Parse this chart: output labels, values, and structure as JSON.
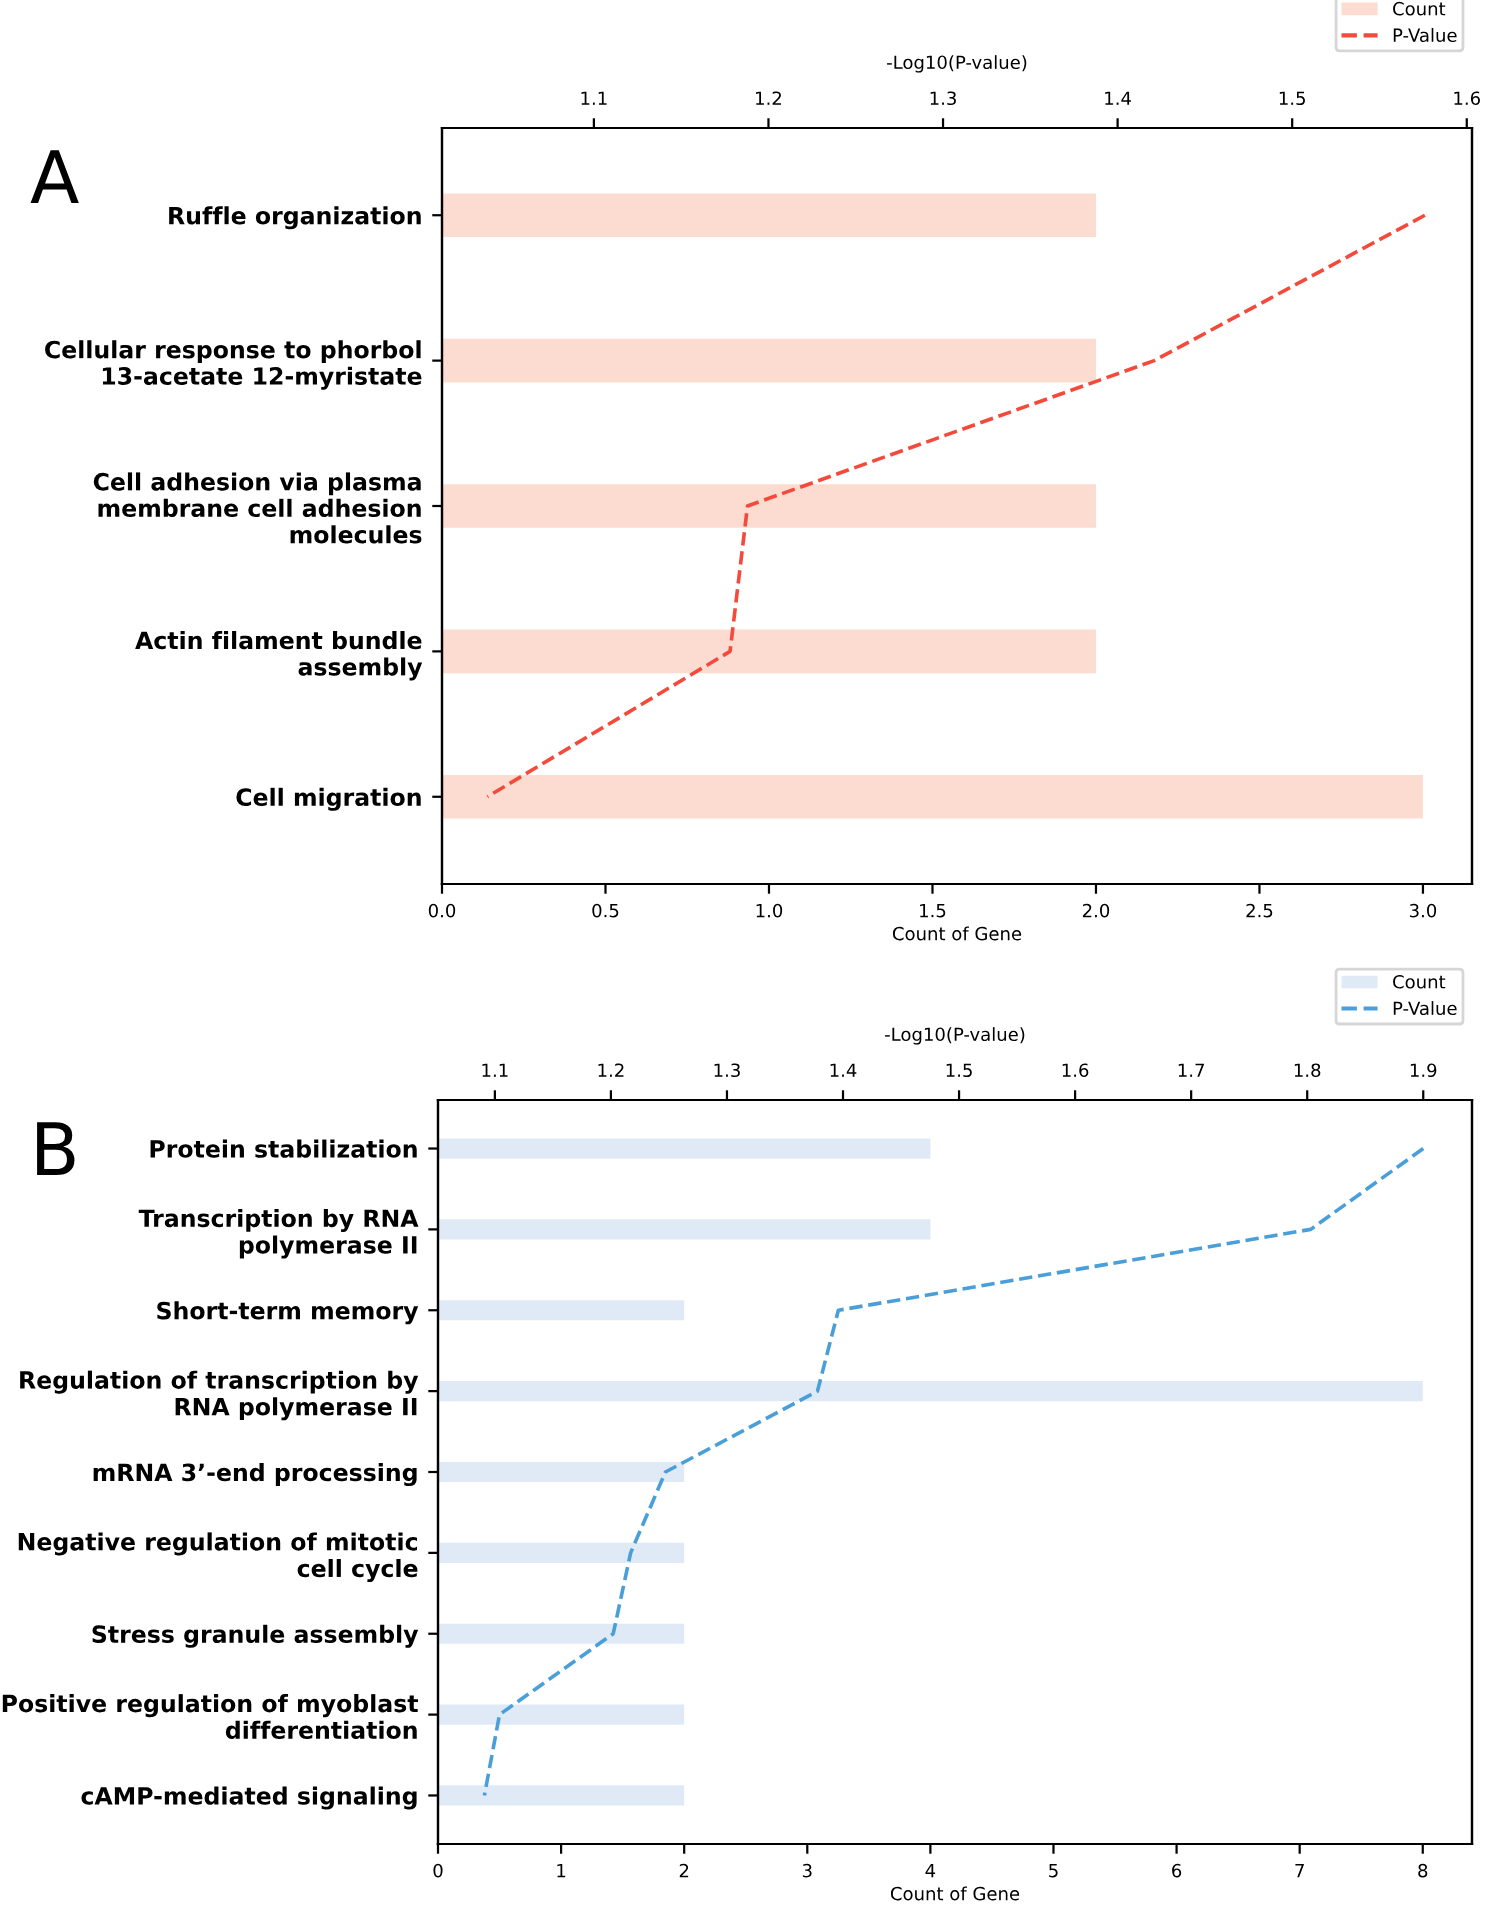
{
  "chart_data": [
    {
      "type": "bar",
      "orientation": "horizontal",
      "annotations": [
        "A"
      ],
      "xlabel": "Count of Gene",
      "x2label": "-Log10(P-value)",
      "categories": [
        "Ruffle organization",
        "Cellular response to phorbol\n13-acetate 12-myristate",
        "Cell adhesion via plasma\nmembrane cell adhesion\nmolecules",
        "Actin filament bundle\nassembly",
        "Cell migration"
      ],
      "series": [
        {
          "name": "Count",
          "color": "#fcdcd0",
          "values": [
            2,
            2,
            2,
            2,
            3
          ]
        },
        {
          "name": "P-Value",
          "type": "line",
          "axis": "x2",
          "color": "#f44a3b",
          "line_style": "dashed",
          "values": [
            1.576,
            1.421,
            1.188,
            1.178,
            1.039
          ]
        }
      ],
      "xlim": [
        0,
        3.15
      ],
      "xticks": [
        {
          "value": 0,
          "label": "0.0"
        },
        0.5,
        {
          "value": 1,
          "label": "1.0"
        },
        1.5,
        {
          "value": 2,
          "label": "2.0"
        },
        2.5,
        {
          "value": 3,
          "label": "3.0"
        }
      ],
      "x2lim": [
        1.013,
        1.603
      ],
      "x2ticks": [
        1.1,
        1.2,
        1.3,
        1.4,
        1.5,
        1.6
      ],
      "legend": "top right",
      "grid": false
    },
    {
      "type": "bar",
      "orientation": "horizontal",
      "annotations": [
        "B"
      ],
      "xlabel": "Count of Gene",
      "x2label": "-Log10(P-value)",
      "categories": [
        "Protein stabilization",
        "Transcription by RNA\npolymerase II",
        "Short-term memory",
        "Regulation of transcription by\nRNA polymerase II",
        "mRNA 3’-end processing",
        "Negative regulation of mitotic\ncell cycle",
        "Stress granule assembly",
        "Positive regulation of myoblast\ndifferentiation",
        "cAMP-mediated signaling"
      ],
      "series": [
        {
          "name": "Count",
          "color": "#dfeaf6",
          "values": [
            4,
            4,
            2,
            8,
            2,
            2,
            2,
            2,
            2
          ]
        },
        {
          "name": "P-Value",
          "type": "line",
          "axis": "x2",
          "color": "#4a9fd8",
          "line_style": "dashed",
          "values": [
            1.9,
            1.803,
            1.396,
            1.378,
            1.247,
            1.217,
            1.202,
            1.104,
            1.091
          ]
        }
      ],
      "xlim": [
        0,
        8.4
      ],
      "xticks": [
        0,
        1,
        2,
        3,
        4,
        5,
        6,
        7,
        8
      ],
      "x2lim": [
        1.051,
        1.942
      ],
      "x2ticks": [
        1.1,
        1.2,
        1.3,
        1.4,
        1.5,
        1.6,
        1.7,
        1.8,
        1.9
      ],
      "legend": "top right",
      "grid": false
    }
  ]
}
